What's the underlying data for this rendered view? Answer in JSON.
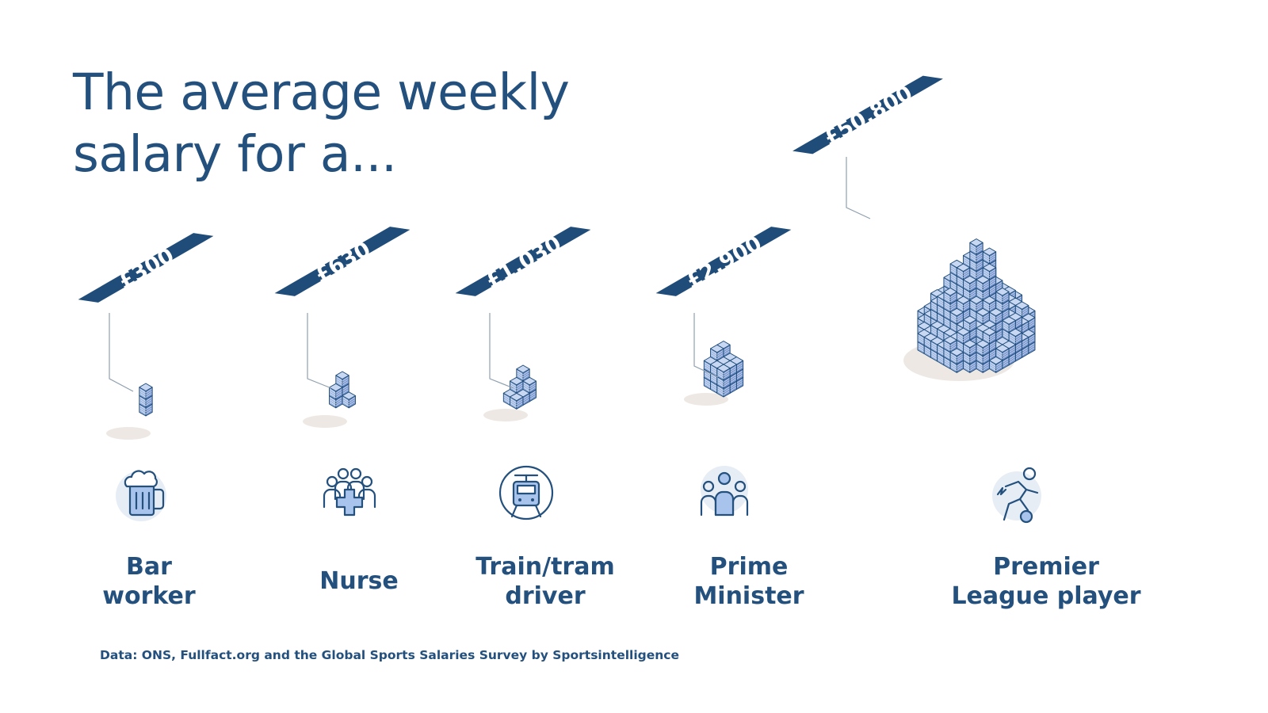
{
  "title": {
    "line1": "The average weekly",
    "line2": "salary for a..."
  },
  "colors": {
    "text": "#23507d",
    "tag_bg": "#1f4c79",
    "cube_top": "#c8d8f2",
    "cube_left": "#9cb6e2",
    "cube_right": "#7796cf",
    "cube_edge": "#1f4c79",
    "icon_fill": "#a9c4ec",
    "icon_circle": "#e6edf5"
  },
  "chart_data": {
    "type": "bar",
    "title": "The average weekly salary for a...",
    "unit": "£ per week",
    "categories": [
      "Bar worker",
      "Nurse",
      "Train/tram driver",
      "Prime Minister",
      "Premier League player"
    ],
    "values": [
      300,
      630,
      1030,
      2900,
      50800
    ],
    "value_labels": [
      "£300",
      "£630",
      "£1,030",
      "£2,900",
      "£50,800"
    ],
    "icons": [
      "beer-mug-icon",
      "nurse-group-icon",
      "train-icon",
      "politician-group-icon",
      "footballer-icon"
    ]
  },
  "jobs": [
    {
      "line1": "Bar",
      "line2": "worker"
    },
    {
      "line1": "Nurse",
      "line2": ""
    },
    {
      "line1": "Train/tram",
      "line2": "driver"
    },
    {
      "line1": "Prime",
      "line2": "Minister"
    },
    {
      "line1": "Premier",
      "line2": "League player"
    }
  ],
  "source": "Data: ONS, Fullfact.org and the Global Sports Salaries Survey by Sportsintelligence"
}
